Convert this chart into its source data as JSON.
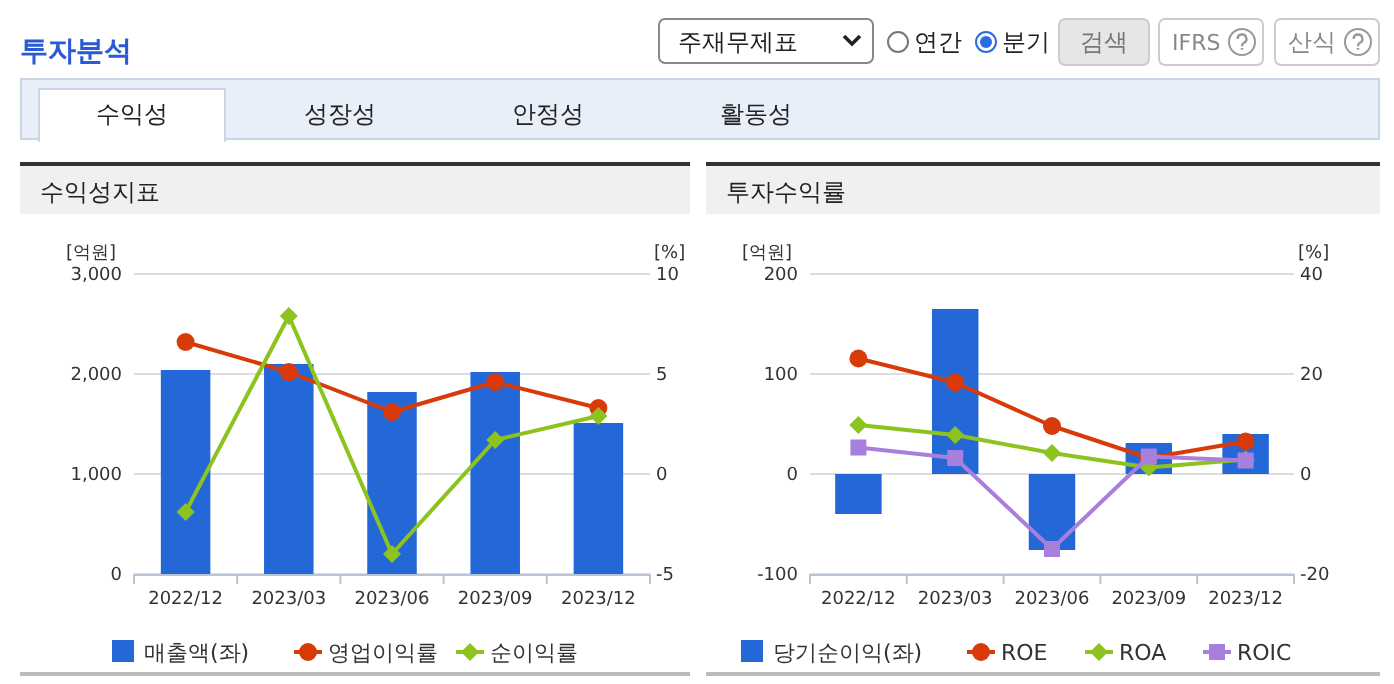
{
  "chart_data": [
    {
      "type": "other",
      "title": "투자분석",
      "annotations": [
        "주재무제표",
        "연간",
        "분기",
        "검색",
        "IFRS",
        "산식",
        "수익성",
        "성장성",
        "안정성",
        "활동성"
      ]
    },
    {
      "type": "bar",
      "title": "수익성지표",
      "ylabel": "[억원]",
      "y2label": "[%]",
      "categories": [
        "2022/12",
        "2023/03",
        "2023/06",
        "2023/09",
        "2023/12"
      ],
      "series": [
        {
          "name": "매출액(좌)",
          "type": "bar",
          "color": "#2468d8",
          "values": [
            2040,
            2100,
            1820,
            2020,
            1510
          ]
        },
        {
          "name": "영업이익률",
          "type": "line",
          "axis": "y2",
          "marker": "circle",
          "color": "#d83a0a",
          "values": [
            6.6,
            5.1,
            3.1,
            4.6,
            3.3
          ]
        },
        {
          "name": "순이익률",
          "type": "line",
          "axis": "y2",
          "marker": "diamond",
          "color": "#8cc31e",
          "values": [
            -1.9,
            7.9,
            -4.0,
            1.7,
            2.9
          ]
        }
      ],
      "ylim": [
        0,
        3000
      ],
      "yticks": [
        0,
        {
          "value": 1000,
          "label": "1,000"
        },
        {
          "value": 2000,
          "label": "2,000"
        },
        {
          "value": 3000,
          "label": "3,000"
        }
      ],
      "y2lim": [
        -5,
        10
      ],
      "y2ticks": [
        -5,
        0,
        5,
        10
      ],
      "grid": "y",
      "legend": "bottom"
    },
    {
      "type": "bar",
      "title": "투자수익률",
      "ylabel": "[억원]",
      "y2label": "[%]",
      "categories": [
        "2022/12",
        "2023/03",
        "2023/06",
        "2023/09",
        "2023/12"
      ],
      "series": [
        {
          "name": "당기순이익(좌)",
          "type": "bar",
          "color": "#2468d8",
          "values": [
            -40,
            165,
            -76,
            31,
            40
          ]
        },
        {
          "name": "ROE",
          "type": "line",
          "axis": "y2",
          "marker": "circle",
          "color": "#d83a0a",
          "values": [
            23.1,
            18.3,
            9.6,
            3.2,
            6.5
          ]
        },
        {
          "name": "ROA",
          "type": "line",
          "axis": "y2",
          "marker": "diamond",
          "color": "#8cc31e",
          "values": [
            9.8,
            7.8,
            4.2,
            1.3,
            2.9
          ]
        },
        {
          "name": "ROIC",
          "type": "line",
          "axis": "y2",
          "marker": "square",
          "color": "#a77fdc",
          "values": [
            5.3,
            3.2,
            -15.0,
            3.5,
            2.7
          ]
        }
      ],
      "ylim": [
        -100,
        200
      ],
      "yticks": [
        -100,
        0,
        100,
        200
      ],
      "y2lim": [
        -20,
        40
      ],
      "y2ticks": [
        -20,
        0,
        20,
        40
      ],
      "grid": "y",
      "legend": "bottom"
    }
  ]
}
